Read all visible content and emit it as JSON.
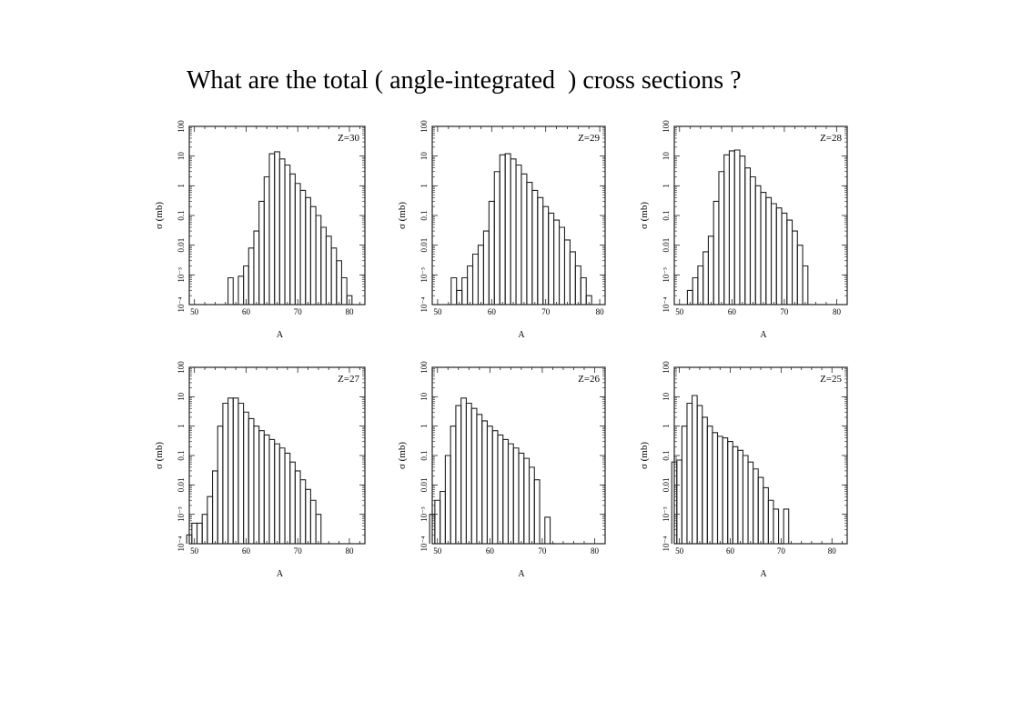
{
  "slide": {
    "title": "What are the total ( angle-integrated  ) cross sections ?"
  },
  "chart_data": [
    {
      "type": "histogram",
      "panel_label": "Z=30",
      "xlabel": "A",
      "ylabel": "σ (mb)",
      "xlim": [
        49,
        83
      ],
      "ylim": [
        0.0001,
        100
      ],
      "yscale": "log",
      "x_ticks": [
        50,
        60,
        70,
        80
      ],
      "y_ticks": [
        {
          "v": 0.0001,
          "t": "10⁻⁴"
        },
        {
          "v": 0.001,
          "t": "10⁻³"
        },
        {
          "v": 0.01,
          "t": "0.01"
        },
        {
          "v": 0.1,
          "t": "0.1"
        },
        {
          "v": 1,
          "t": "1"
        },
        {
          "v": 10,
          "t": "10"
        },
        {
          "v": 100,
          "t": "100"
        }
      ],
      "x": [
        57,
        58,
        59,
        60,
        61,
        62,
        63,
        64,
        65,
        66,
        67,
        68,
        69,
        70,
        71,
        72,
        73,
        74,
        75,
        76,
        77,
        78,
        79,
        80
      ],
      "values": [
        0.0008,
        0.0001,
        0.0009,
        0.002,
        0.008,
        0.03,
        0.3,
        2,
        12,
        14,
        8,
        5,
        2.5,
        1.2,
        0.7,
        0.4,
        0.2,
        0.1,
        0.04,
        0.02,
        0.008,
        0.003,
        0.0008,
        0.0002
      ]
    },
    {
      "type": "histogram",
      "panel_label": "Z=29",
      "xlabel": "A",
      "ylabel": "σ (mb)",
      "xlim": [
        49,
        81
      ],
      "ylim": [
        0.0001,
        100
      ],
      "yscale": "log",
      "x_ticks": [
        50,
        60,
        70,
        80
      ],
      "y_ticks": [
        {
          "v": 0.0001,
          "t": "10⁻⁴"
        },
        {
          "v": 0.001,
          "t": "10⁻³"
        },
        {
          "v": 0.01,
          "t": "0.01"
        },
        {
          "v": 0.1,
          "t": "0.1"
        },
        {
          "v": 1,
          "t": "1"
        },
        {
          "v": 10,
          "t": "10"
        },
        {
          "v": 100,
          "t": "100"
        }
      ],
      "x": [
        53,
        54,
        55,
        56,
        57,
        58,
        59,
        60,
        61,
        62,
        63,
        64,
        65,
        66,
        67,
        68,
        69,
        70,
        71,
        72,
        73,
        74,
        75,
        76,
        77,
        78
      ],
      "values": [
        0.0008,
        0.0003,
        0.0008,
        0.002,
        0.005,
        0.01,
        0.03,
        0.3,
        3,
        11,
        12,
        8,
        5,
        2.5,
        1.3,
        0.7,
        0.4,
        0.2,
        0.12,
        0.07,
        0.04,
        0.015,
        0.006,
        0.002,
        0.0008,
        0.0002
      ]
    },
    {
      "type": "histogram",
      "panel_label": "Z=28",
      "xlabel": "A",
      "ylabel": "σ (mb)",
      "xlim": [
        49,
        82
      ],
      "ylim": [
        0.0001,
        100
      ],
      "yscale": "log",
      "x_ticks": [
        50,
        60,
        70,
        80
      ],
      "y_ticks": [
        {
          "v": 0.0001,
          "t": "10⁻⁴"
        },
        {
          "v": 0.001,
          "t": "10⁻³"
        },
        {
          "v": 0.01,
          "t": "0.01"
        },
        {
          "v": 0.1,
          "t": "0.1"
        },
        {
          "v": 1,
          "t": "1"
        },
        {
          "v": 10,
          "t": "10"
        },
        {
          "v": 100,
          "t": "100"
        }
      ],
      "x": [
        52,
        53,
        54,
        55,
        56,
        57,
        58,
        59,
        60,
        61,
        62,
        63,
        64,
        65,
        66,
        67,
        68,
        69,
        70,
        71,
        72,
        73,
        74
      ],
      "values": [
        0.0003,
        0.0008,
        0.002,
        0.006,
        0.02,
        0.3,
        3,
        11,
        15,
        16,
        10,
        4,
        2,
        1,
        0.6,
        0.4,
        0.25,
        0.18,
        0.12,
        0.07,
        0.03,
        0.01,
        0.002
      ]
    },
    {
      "type": "histogram",
      "panel_label": "Z=27",
      "xlabel": "A",
      "ylabel": "σ (mb)",
      "xlim": [
        49,
        83
      ],
      "ylim": [
        0.0001,
        100
      ],
      "yscale": "log",
      "x_ticks": [
        50,
        60,
        70,
        80
      ],
      "y_ticks": [
        {
          "v": 0.0001,
          "t": "10⁻⁴"
        },
        {
          "v": 0.001,
          "t": "10⁻³"
        },
        {
          "v": 0.01,
          "t": "0.01"
        },
        {
          "v": 0.1,
          "t": "0.1"
        },
        {
          "v": 1,
          "t": "1"
        },
        {
          "v": 10,
          "t": "10"
        },
        {
          "v": 100,
          "t": "100"
        }
      ],
      "x": [
        49,
        50,
        51,
        52,
        53,
        54,
        55,
        56,
        57,
        58,
        59,
        60,
        61,
        62,
        63,
        64,
        65,
        66,
        67,
        68,
        69,
        70,
        71,
        72,
        73,
        74
      ],
      "values": [
        0.0002,
        0.0005,
        0.0005,
        0.001,
        0.004,
        0.03,
        1,
        6,
        9,
        9,
        6,
        3,
        1.8,
        1,
        0.7,
        0.5,
        0.35,
        0.25,
        0.18,
        0.12,
        0.06,
        0.03,
        0.015,
        0.007,
        0.003,
        0.001
      ]
    },
    {
      "type": "histogram",
      "panel_label": "Z=26",
      "xlabel": "A",
      "ylabel": "σ (mb)",
      "xlim": [
        49,
        82
      ],
      "ylim": [
        0.0001,
        100
      ],
      "yscale": "log",
      "x_ticks": [
        50,
        60,
        70,
        80
      ],
      "y_ticks": [
        {
          "v": 0.0001,
          "t": "10⁻⁴"
        },
        {
          "v": 0.001,
          "t": "10⁻³"
        },
        {
          "v": 0.01,
          "t": "0.01"
        },
        {
          "v": 0.1,
          "t": "0.1"
        },
        {
          "v": 1,
          "t": "1"
        },
        {
          "v": 10,
          "t": "10"
        },
        {
          "v": 100,
          "t": "100"
        }
      ],
      "x": [
        49,
        50,
        51,
        52,
        53,
        54,
        55,
        56,
        57,
        58,
        59,
        60,
        61,
        62,
        63,
        64,
        65,
        66,
        67,
        68,
        69,
        70,
        71,
        72
      ],
      "values": [
        0.001,
        0.003,
        0.006,
        0.1,
        1,
        5,
        9,
        6,
        4,
        2.5,
        1.5,
        1,
        0.7,
        0.5,
        0.35,
        0.25,
        0.18,
        0.12,
        0.08,
        0.04,
        0.015,
        0.0001,
        0.0008,
        0.0001
      ]
    },
    {
      "type": "histogram",
      "panel_label": "Z=25",
      "xlabel": "A",
      "ylabel": "σ (mb)",
      "xlim": [
        49,
        83
      ],
      "ylim": [
        0.0001,
        100
      ],
      "yscale": "log",
      "x_ticks": [
        50,
        60,
        70,
        80
      ],
      "y_ticks": [
        {
          "v": 0.0001,
          "t": "10⁻⁴"
        },
        {
          "v": 0.001,
          "t": "10⁻³"
        },
        {
          "v": 0.01,
          "t": "0.01"
        },
        {
          "v": 0.1,
          "t": "0.1"
        },
        {
          "v": 1,
          "t": "1"
        },
        {
          "v": 10,
          "t": "10"
        },
        {
          "v": 100,
          "t": "100"
        }
      ],
      "x": [
        49,
        50,
        51,
        52,
        53,
        54,
        55,
        56,
        57,
        58,
        59,
        60,
        61,
        62,
        63,
        64,
        65,
        66,
        67,
        68,
        69,
        70,
        71
      ],
      "values": [
        0.06,
        0.07,
        1,
        6,
        11,
        5,
        2,
        1,
        0.6,
        0.45,
        0.4,
        0.3,
        0.2,
        0.15,
        0.1,
        0.06,
        0.035,
        0.018,
        0.008,
        0.003,
        0.0015,
        0.0001,
        0.0015
      ]
    }
  ]
}
